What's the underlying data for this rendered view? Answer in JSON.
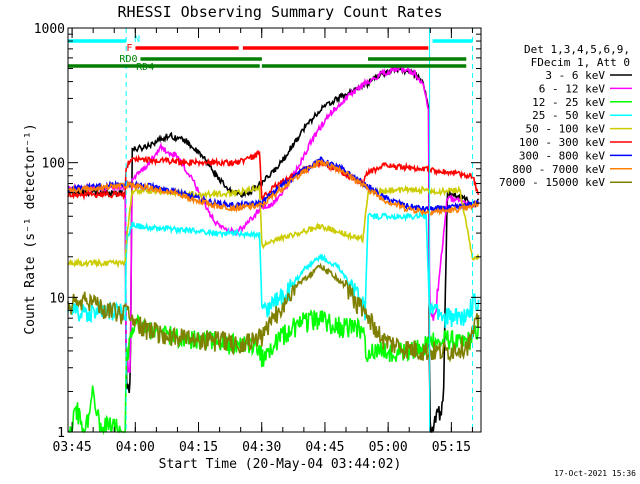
{
  "chart_data": {
    "type": "line",
    "title": "RHESSI Observing Summary Count Rates",
    "xlabel": "Start Time (20-May-04 03:44:02)",
    "ylabel": "Count Rate (s⁻¹ detector⁻¹)",
    "ylim": [
      1,
      1000
    ],
    "yscale": "log",
    "xlim_minutes": [
      0,
      98
    ],
    "x_tick_labels": [
      "03:45",
      "04:00",
      "04:15",
      "04:30",
      "04:45",
      "05:00",
      "05:15"
    ],
    "x_tick_minutes": [
      0.97,
      15.97,
      30.97,
      45.97,
      60.97,
      75.97,
      90.97
    ],
    "y_tick_labels": [
      "1",
      "10",
      "100",
      "1000"
    ],
    "y_tick_values": [
      1,
      10,
      100,
      1000
    ],
    "grid": false,
    "legend_position": "right",
    "legend_header": [
      "Det 1,3,4,5,6,9,",
      "FDecim 1, Att 0"
    ],
    "footer_date": "17-Oct-2021 15:36",
    "flags": [
      {
        "label": "N",
        "color": "#00ffff",
        "segments": [
          [
            0,
            13.8
          ],
          [
            86.5,
            96
          ]
        ]
      },
      {
        "label": "F",
        "color": "#ff0000",
        "segments": [
          [
            16,
            40.5
          ],
          [
            41.5,
            85.5
          ]
        ]
      },
      {
        "label": "RD0",
        "color": "#007f00",
        "segments": [
          [
            17.2,
            46
          ],
          [
            71.2,
            94.5
          ]
        ]
      },
      {
        "label": "RD4",
        "color": "#007f00",
        "segments": [
          [
            0,
            45.5
          ],
          [
            46,
            94.5
          ]
        ]
      }
    ],
    "event_lines": [
      {
        "color": "#00ffff",
        "style": "dashed",
        "x": 13.8
      },
      {
        "color": "#00ffff",
        "style": "solid",
        "x": 85.8
      },
      {
        "color": "#00ffff",
        "style": "dashed",
        "x": 96
      }
    ],
    "series": [
      {
        "name": "3 - 6 keV",
        "color": "#000000",
        "x": [
          0,
          13.6,
          13.8,
          14.8,
          15.2,
          18,
          24,
          28,
          32,
          36,
          38,
          42,
          46,
          50,
          56,
          60,
          64,
          70,
          74,
          78,
          82,
          84,
          85.6,
          85.8,
          87,
          89,
          90,
          93,
          95,
          96,
          97,
          97.5
        ],
        "y": [
          60,
          60,
          2.2,
          2.2,
          125,
          130,
          160,
          145,
          110,
          75,
          62,
          58,
          70,
          95,
          180,
          250,
          300,
          370,
          450,
          500,
          460,
          420,
          250,
          1,
          1.2,
          1.5,
          60,
          56,
          53,
          47,
          50,
          52
        ]
      },
      {
        "name": "6 - 12 keV",
        "color": "#ff00ff",
        "x": [
          0,
          13.6,
          13.8,
          14.8,
          15.2,
          18,
          22,
          26,
          30,
          34,
          36,
          40,
          44,
          46,
          48,
          50,
          54,
          58,
          62,
          66,
          70,
          74,
          78,
          82,
          84,
          85.6,
          85.8,
          86.2,
          87,
          90,
          93,
          96,
          97.5
        ],
        "y": [
          65,
          65,
          3,
          3,
          75,
          90,
          130,
          110,
          70,
          40,
          33,
          30,
          40,
          47,
          48,
          55,
          85,
          150,
          230,
          300,
          380,
          450,
          500,
          470,
          400,
          250,
          7,
          6.5,
          6.5,
          55,
          52,
          48,
          52
        ]
      },
      {
        "name": "12 - 25 keV",
        "color": "#00ff00",
        "x": [
          0,
          2,
          4,
          6,
          8,
          10,
          13.6,
          13.8,
          14.4,
          15.2,
          20,
          30,
          40,
          45.5,
          46,
          50,
          55,
          60,
          65,
          70,
          71,
          72,
          80,
          85.8,
          86.5,
          87,
          88,
          90,
          93,
          96,
          97.5
        ],
        "y": [
          1,
          1.5,
          1,
          2,
          1,
          1.2,
          1,
          3.8,
          4,
          6.5,
          5.5,
          5,
          4.5,
          4.2,
          3.5,
          5,
          6.5,
          7,
          6,
          5.8,
          3.6,
          4,
          4,
          4.5,
          5,
          5,
          4.5,
          5,
          4.5,
          5,
          6
        ]
      },
      {
        "name": "25 - 50 keV",
        "color": "#00ffff",
        "x": [
          0,
          13.6,
          13.8,
          15.2,
          18,
          25,
          30,
          35,
          40,
          45.5,
          46,
          48,
          52,
          56,
          60,
          64,
          68,
          70.5,
          71.2,
          75,
          80,
          85,
          85.8,
          86.5,
          90,
          93,
          95,
          96,
          97.5
        ],
        "y": [
          8,
          8,
          25,
          35,
          33,
          32,
          31,
          30,
          30,
          29,
          8,
          8.5,
          11,
          16,
          20,
          17,
          11,
          8,
          40,
          40,
          40,
          40,
          8,
          8,
          7,
          7,
          8,
          9,
          10
        ]
      },
      {
        "name": "50 - 100 keV",
        "color": "#cccc00",
        "x": [
          0,
          13.6,
          13.8,
          15.2,
          18,
          25,
          30,
          35,
          40,
          45.5,
          46,
          50,
          55,
          60,
          65,
          70,
          71.2,
          75,
          80,
          85,
          85.8,
          90,
          93,
          96,
          97.5
        ],
        "y": [
          18,
          18,
          25,
          60,
          63,
          60,
          58,
          58,
          60,
          65,
          24,
          27,
          30,
          34,
          30,
          27,
          60,
          62,
          63,
          63,
          60,
          62,
          63,
          20,
          20
        ]
      },
      {
        "name": "100 - 300 keV",
        "color": "#ff0000",
        "x": [
          0,
          13.6,
          13.8,
          15.2,
          18,
          25,
          30,
          35,
          40,
          44,
          45.5,
          46,
          50,
          55,
          60,
          65,
          70,
          71.2,
          75,
          80,
          85,
          85.8,
          90,
          93,
          96,
          97.5
        ],
        "y": [
          58,
          58,
          95,
          105,
          105,
          102,
          100,
          100,
          100,
          110,
          120,
          55,
          70,
          85,
          100,
          85,
          70,
          85,
          95,
          92,
          90,
          88,
          85,
          82,
          80,
          55
        ]
      },
      {
        "name": "300 - 800 keV",
        "color": "#0000ff",
        "x": [
          0,
          5,
          10,
          13.8,
          18,
          25,
          30,
          35,
          40,
          45.5,
          46,
          50,
          55,
          60,
          65,
          70,
          75,
          80,
          85,
          90,
          95,
          97.5
        ],
        "y": [
          64,
          66,
          68,
          70,
          68,
          62,
          55,
          50,
          48,
          50,
          50,
          65,
          85,
          105,
          90,
          70,
          55,
          48,
          45,
          46,
          48,
          52
        ]
      },
      {
        "name": "800 - 7000 keV",
        "color": "#ff7f00",
        "x": [
          0,
          5,
          10,
          13.8,
          18,
          25,
          30,
          35,
          40,
          45.5,
          46,
          50,
          55,
          60,
          65,
          70,
          75,
          80,
          85,
          90,
          95,
          97.5
        ],
        "y": [
          62,
          64,
          66,
          68,
          66,
          60,
          53,
          48,
          46,
          48,
          48,
          62,
          82,
          102,
          88,
          68,
          53,
          46,
          43,
          44,
          46,
          50
        ]
      },
      {
        "name": "7000 - 15000 keV",
        "color": "#7f7f00",
        "x": [
          0,
          5,
          10,
          13.8,
          18,
          25,
          30,
          35,
          40,
          45.5,
          46,
          50,
          55,
          60,
          65,
          70,
          75,
          80,
          85,
          90,
          95,
          97.5
        ],
        "y": [
          9,
          9.5,
          8,
          7.5,
          5.8,
          5.2,
          5,
          4.8,
          4.6,
          5,
          5,
          8,
          13,
          17,
          13,
          8,
          4.8,
          4.2,
          4,
          4,
          4.5,
          7
        ]
      }
    ]
  }
}
